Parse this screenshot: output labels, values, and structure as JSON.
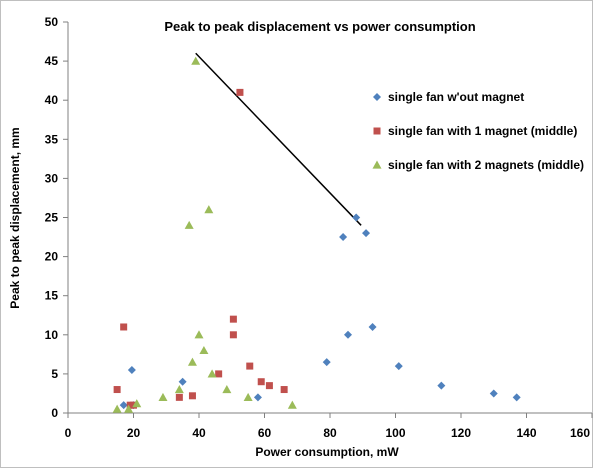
{
  "chart_data": {
    "type": "scatter",
    "title": "Peak to peak displacement vs power consumption",
    "xlabel": "Power consumption, mW",
    "ylabel": "Peak to peak displacement, mm",
    "xlim": [
      0,
      160
    ],
    "ylim": [
      0,
      50
    ],
    "xticks": [
      0,
      20,
      40,
      60,
      80,
      100,
      120,
      140,
      160
    ],
    "yticks": [
      0,
      5,
      10,
      15,
      20,
      25,
      30,
      35,
      40,
      45,
      50
    ],
    "grid": false,
    "legend_position": "right",
    "series": [
      {
        "name": "single fan w'out magnet",
        "marker": "diamond",
        "color": "#4F81BD",
        "points": [
          [
            17,
            1
          ],
          [
            19.5,
            5.5
          ],
          [
            20,
            1
          ],
          [
            35,
            4
          ],
          [
            58,
            2
          ],
          [
            79,
            6.5
          ],
          [
            84,
            22.5
          ],
          [
            85.5,
            10
          ],
          [
            88,
            25
          ],
          [
            91,
            23
          ],
          [
            93,
            11
          ],
          [
            101,
            6
          ],
          [
            114,
            3.5
          ],
          [
            130,
            2.5
          ],
          [
            137,
            2
          ]
        ]
      },
      {
        "name": "single fan with 1 magnet (middle)",
        "marker": "square",
        "color": "#C0504D",
        "points": [
          [
            15,
            3
          ],
          [
            17,
            11
          ],
          [
            19,
            1
          ],
          [
            20,
            1
          ],
          [
            34,
            2
          ],
          [
            38,
            2.2
          ],
          [
            46,
            5
          ],
          [
            50.5,
            12
          ],
          [
            50.5,
            10
          ],
          [
            52.5,
            41
          ],
          [
            55.5,
            6
          ],
          [
            59,
            4
          ],
          [
            61.5,
            3.5
          ],
          [
            66,
            3
          ]
        ]
      },
      {
        "name": "single fan with 2 magnets (middle)",
        "marker": "triangle",
        "color": "#9BBB59",
        "points": [
          [
            15,
            0.5
          ],
          [
            18.5,
            0.5
          ],
          [
            21,
            1.2
          ],
          [
            29,
            2
          ],
          [
            34,
            3
          ],
          [
            37,
            24
          ],
          [
            38,
            6.5
          ],
          [
            39,
            45
          ],
          [
            40,
            10
          ],
          [
            41.5,
            8
          ],
          [
            43,
            26
          ],
          [
            44,
            5
          ],
          [
            48.5,
            3
          ],
          [
            55,
            2
          ],
          [
            68.5,
            1
          ]
        ]
      }
    ],
    "trend_line": {
      "from": [
        39,
        46
      ],
      "to": [
        89.5,
        24
      ],
      "color": "#000000"
    }
  }
}
